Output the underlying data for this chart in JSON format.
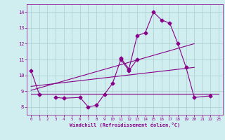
{
  "xlabel": "Windchill (Refroidissement éolien,°C)",
  "xlim": [
    -0.5,
    23.5
  ],
  "ylim": [
    7.5,
    14.5
  ],
  "yticks": [
    8,
    9,
    10,
    11,
    12,
    13,
    14
  ],
  "xticks": [
    0,
    1,
    2,
    3,
    4,
    5,
    6,
    7,
    8,
    9,
    10,
    11,
    12,
    13,
    14,
    15,
    16,
    17,
    18,
    19,
    20,
    21,
    22,
    23
  ],
  "background_color": "#d0eef0",
  "line_color": "#880088",
  "grid_color": "#aacccc",
  "curve1": {
    "x": [
      0,
      1
    ],
    "y": [
      10.3,
      8.8
    ]
  },
  "curve2": {
    "x": [
      3,
      4,
      6,
      7,
      8,
      9,
      10,
      11,
      12,
      13
    ],
    "y": [
      8.6,
      8.55,
      8.6,
      8.0,
      8.1,
      8.8,
      9.5,
      11.0,
      10.3,
      11.0
    ]
  },
  "curve3": {
    "x": [
      11,
      12,
      13,
      14,
      15,
      16,
      17,
      18,
      19,
      20,
      22
    ],
    "y": [
      11.1,
      10.4,
      12.5,
      12.7,
      14.0,
      13.5,
      13.3,
      12.0,
      10.5,
      8.6,
      8.7
    ]
  },
  "line_flat": {
    "x": [
      0,
      23
    ],
    "y": [
      8.85,
      8.85
    ]
  },
  "line_steep": {
    "x": [
      0,
      20
    ],
    "y": [
      9.05,
      12.0
    ]
  },
  "line_gradual": {
    "x": [
      0,
      20
    ],
    "y": [
      9.3,
      10.5
    ]
  }
}
